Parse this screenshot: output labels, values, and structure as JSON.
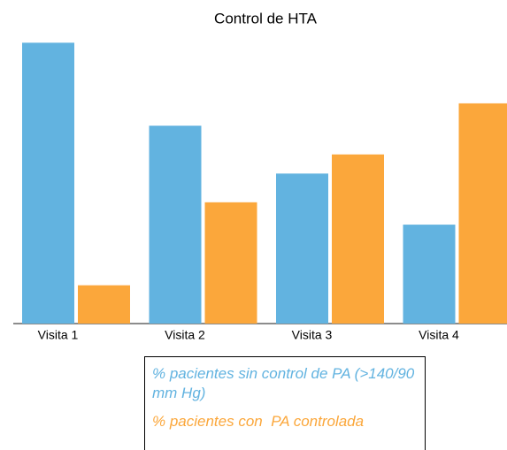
{
  "chart_data": {
    "type": "bar",
    "title": "Control de HTA",
    "categories": [
      "Visita 1",
      "Visita 2",
      "Visita 3",
      "Visita 4"
    ],
    "series": [
      {
        "name": "% pacientes sin control de PA (>140/90 mm Hg)",
        "color": "#62b3e0",
        "values": [
          88,
          62,
          47,
          31
        ]
      },
      {
        "name": "% pacientes con  PA controlada",
        "color": "#fba73b",
        "values": [
          12,
          38,
          53,
          69
        ]
      }
    ],
    "ylim": [
      0,
      100
    ]
  }
}
